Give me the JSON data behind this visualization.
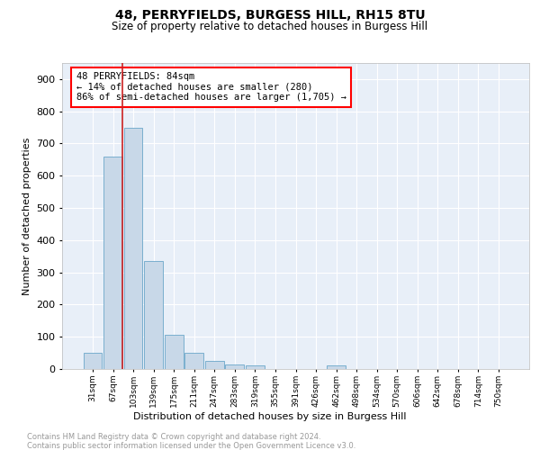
{
  "title": "48, PERRYFIELDS, BURGESS HILL, RH15 8TU",
  "subtitle": "Size of property relative to detached houses in Burgess Hill",
  "xlabel": "Distribution of detached houses by size in Burgess Hill",
  "ylabel": "Number of detached properties",
  "footnote1": "Contains HM Land Registry data © Crown copyright and database right 2024.",
  "footnote2": "Contains public sector information licensed under the Open Government Licence v3.0.",
  "bar_labels": [
    "31sqm",
    "67sqm",
    "103sqm",
    "139sqm",
    "175sqm",
    "211sqm",
    "247sqm",
    "283sqm",
    "319sqm",
    "355sqm",
    "391sqm",
    "426sqm",
    "462sqm",
    "498sqm",
    "534sqm",
    "570sqm",
    "606sqm",
    "642sqm",
    "678sqm",
    "714sqm",
    "750sqm"
  ],
  "bar_values": [
    50,
    660,
    750,
    335,
    105,
    50,
    25,
    15,
    10,
    0,
    0,
    0,
    10,
    0,
    0,
    0,
    0,
    0,
    0,
    0,
    0
  ],
  "bar_color": "#c8d8e8",
  "bar_edge_color": "#7aafcf",
  "annotation_text": "48 PERRYFIELDS: 84sqm\n← 14% of detached houses are smaller (280)\n86% of semi-detached houses are larger (1,705) →",
  "annotation_box_color": "white",
  "annotation_box_edgecolor": "red",
  "vline_color": "#cc2222",
  "ylim": [
    0,
    950
  ],
  "yticks": [
    0,
    100,
    200,
    300,
    400,
    500,
    600,
    700,
    800,
    900
  ],
  "bg_color": "#e8eff8",
  "grid_color": "white"
}
